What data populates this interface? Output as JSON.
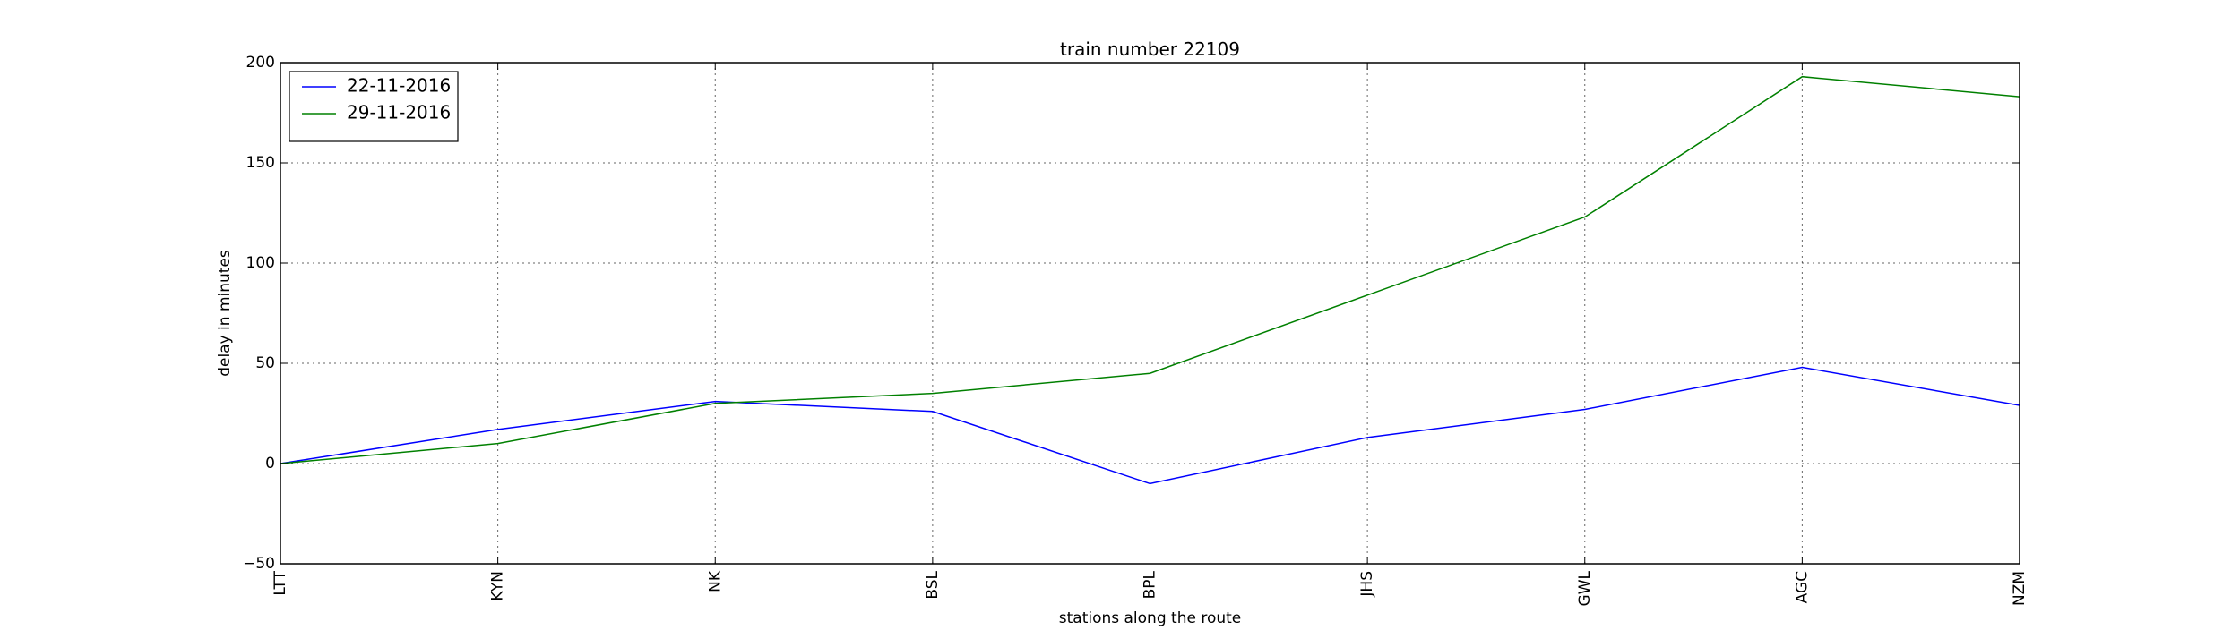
{
  "chart_data": {
    "type": "line",
    "title": "train number 22109",
    "xlabel": "stations along the route",
    "ylabel": "delay in minutes",
    "categories": [
      "LTT",
      "KYN",
      "NK",
      "BSL",
      "BPL",
      "JHS",
      "GWL",
      "AGC",
      "NZM"
    ],
    "ylim": [
      -50,
      200
    ],
    "yticks": [
      -50,
      0,
      50,
      100,
      150,
      200
    ],
    "grid": true,
    "legend_position": "top-left",
    "series": [
      {
        "name": "22-11-2016",
        "color": "#0000ff",
        "values": [
          0,
          17,
          31,
          26,
          -10,
          13,
          27,
          48,
          29
        ]
      },
      {
        "name": "29-11-2016",
        "color": "#008000",
        "values": [
          0,
          10,
          30,
          35,
          45,
          84,
          123,
          193,
          183
        ]
      }
    ]
  }
}
